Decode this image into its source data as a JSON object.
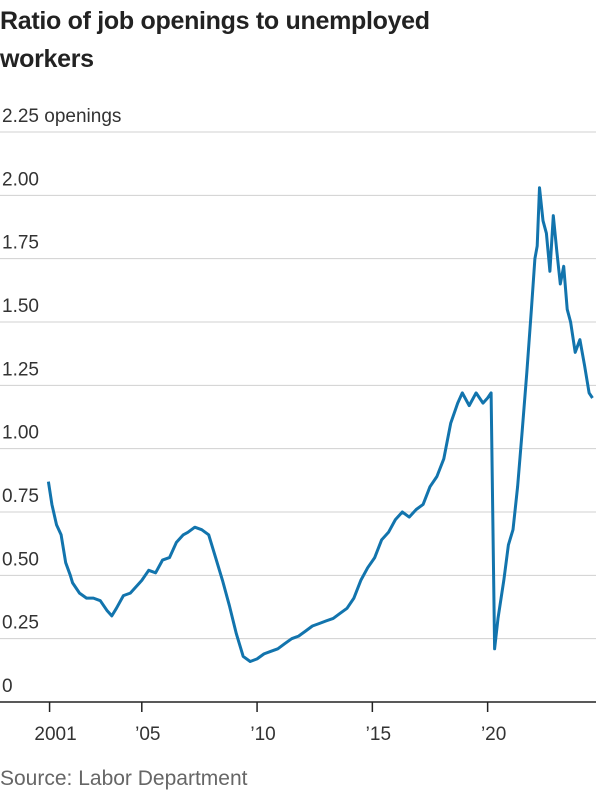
{
  "chart_data": {
    "type": "line",
    "title": "Ratio of job openings to unemployed workers",
    "source": "Source: Labor Department",
    "x": [
      2000.95,
      2001.1,
      2001.3,
      2001.5,
      2001.7,
      2001.9,
      2002.0,
      2002.3,
      2002.6,
      2002.9,
      2003.2,
      2003.5,
      2003.7,
      2003.9,
      2004.2,
      2004.5,
      2004.8,
      2005.0,
      2005.3,
      2005.6,
      2005.9,
      2006.2,
      2006.5,
      2006.8,
      2007.0,
      2007.3,
      2007.6,
      2007.9,
      2008.2,
      2008.5,
      2008.8,
      2009.1,
      2009.4,
      2009.7,
      2010.0,
      2010.3,
      2010.6,
      2010.9,
      2011.2,
      2011.5,
      2011.8,
      2012.1,
      2012.4,
      2012.7,
      2013.0,
      2013.3,
      2013.6,
      2013.9,
      2014.2,
      2014.5,
      2014.8,
      2015.1,
      2015.4,
      2015.7,
      2016.0,
      2016.3,
      2016.6,
      2016.9,
      2017.2,
      2017.5,
      2017.8,
      2018.1,
      2018.4,
      2018.7,
      2018.9,
      2019.2,
      2019.5,
      2019.8,
      2020.0,
      2020.15,
      2020.3,
      2020.45,
      2020.7,
      2020.9,
      2021.1,
      2021.3,
      2021.5,
      2021.7,
      2021.9,
      2022.05,
      2022.15,
      2022.25,
      2022.4,
      2022.55,
      2022.7,
      2022.85,
      2023.0,
      2023.15,
      2023.3,
      2023.45,
      2023.6,
      2023.8,
      2024.0,
      2024.2,
      2024.4,
      2024.55
    ],
    "series": [
      {
        "color": "#1274ad",
        "values": [
          0.87,
          0.78,
          0.7,
          0.66,
          0.55,
          0.5,
          0.47,
          0.43,
          0.41,
          0.41,
          0.4,
          0.36,
          0.34,
          0.37,
          0.42,
          0.43,
          0.46,
          0.48,
          0.52,
          0.51,
          0.56,
          0.57,
          0.63,
          0.66,
          0.67,
          0.69,
          0.68,
          0.66,
          0.57,
          0.48,
          0.38,
          0.27,
          0.18,
          0.16,
          0.17,
          0.19,
          0.2,
          0.21,
          0.23,
          0.25,
          0.26,
          0.28,
          0.3,
          0.31,
          0.32,
          0.33,
          0.35,
          0.37,
          0.41,
          0.48,
          0.53,
          0.57,
          0.64,
          0.67,
          0.72,
          0.75,
          0.73,
          0.76,
          0.78,
          0.85,
          0.89,
          0.96,
          1.1,
          1.18,
          1.22,
          1.17,
          1.22,
          1.18,
          1.2,
          1.22,
          0.21,
          0.33,
          0.48,
          0.62,
          0.68,
          0.85,
          1.07,
          1.3,
          1.55,
          1.75,
          1.8,
          2.03,
          1.9,
          1.85,
          1.7,
          1.92,
          1.78,
          1.65,
          1.72,
          1.55,
          1.5,
          1.38,
          1.43,
          1.33,
          1.22,
          1.2
        ]
      }
    ],
    "xlim": [
      1998.85,
      2024.7
    ],
    "xticks": [
      {
        "value": 2001,
        "label": "2001"
      },
      {
        "value": 2005,
        "label": "’05"
      },
      {
        "value": 2010,
        "label": "’10"
      },
      {
        "value": 2015,
        "label": "’15"
      },
      {
        "value": 2020,
        "label": "’20"
      }
    ],
    "ylim": [
      0,
      2.25
    ],
    "yticks": [
      0,
      {
        "value": 0.25,
        "label": "0.25"
      },
      {
        "value": 0.5,
        "label": "0.50"
      },
      {
        "value": 0.75,
        "label": "0.75"
      },
      {
        "value": 1,
        "label": "1.00"
      },
      {
        "value": 1.25,
        "label": "1.25"
      },
      {
        "value": 1.5,
        "label": "1.50"
      },
      {
        "value": 1.75,
        "label": "1.75"
      },
      {
        "value": 2,
        "label": "2.00"
      },
      {
        "value": 2.25,
        "label": "2.25 openings"
      }
    ],
    "grid": true
  }
}
